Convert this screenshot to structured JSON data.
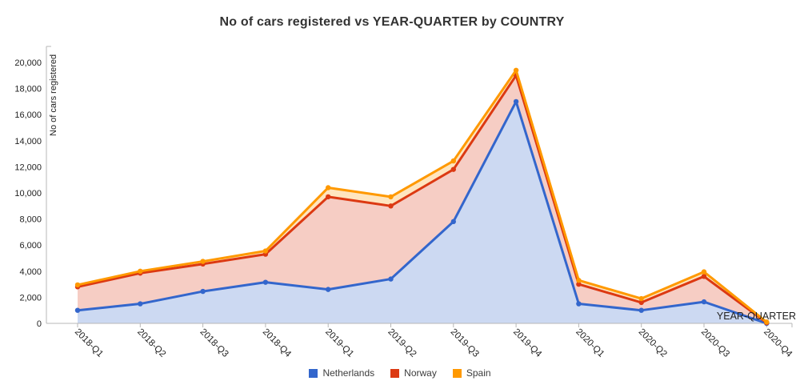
{
  "chart_data": {
    "type": "area",
    "stacked": true,
    "title": "No of cars registered vs YEAR-QUARTER by COUNTRY",
    "xlabel": "YEAR-QUARTER",
    "ylabel": "No of cars registered",
    "categories": [
      "2018-Q1",
      "2018-Q2",
      "2018-Q3",
      "2018-Q4",
      "2019-Q1",
      "2019-Q2",
      "2019-Q3",
      "2019-Q4",
      "2020-Q1",
      "2020-Q2",
      "2020-Q3",
      "2020-Q4"
    ],
    "series": [
      {
        "name": "Netherlands",
        "color": "#3366CC",
        "values": [
          1000,
          1500,
          2450,
          3150,
          2600,
          3400,
          7800,
          17000,
          1500,
          1000,
          1650,
          0
        ]
      },
      {
        "name": "Norway",
        "color": "#DC3912",
        "values": [
          1800,
          2350,
          2100,
          2150,
          7100,
          5600,
          4000,
          2000,
          1500,
          600,
          1950,
          50
        ]
      },
      {
        "name": "Spain",
        "color": "#FF9900",
        "values": [
          150,
          150,
          200,
          250,
          700,
          700,
          650,
          400,
          300,
          300,
          350,
          50
        ]
      }
    ],
    "stacked_totals": {
      "netherlands_line": [
        1000,
        1500,
        2450,
        3150,
        2600,
        3400,
        7800,
        17000,
        1500,
        1000,
        1650,
        0
      ],
      "norway_line": [
        2800,
        3850,
        4550,
        5300,
        9700,
        9000,
        11800,
        19000,
        3000,
        1600,
        3600,
        50
      ],
      "spain_line": [
        2950,
        4000,
        4750,
        5550,
        10400,
        9700,
        12450,
        19400,
        3300,
        1900,
        3950,
        100
      ]
    },
    "ylim": [
      0,
      20000
    ],
    "ytick_step": 2000,
    "grid": false,
    "legend_position": "bottom",
    "fill_opacity": 0.25,
    "axis_color": "#b7b7b7",
    "tick_label_color": "#222222"
  }
}
